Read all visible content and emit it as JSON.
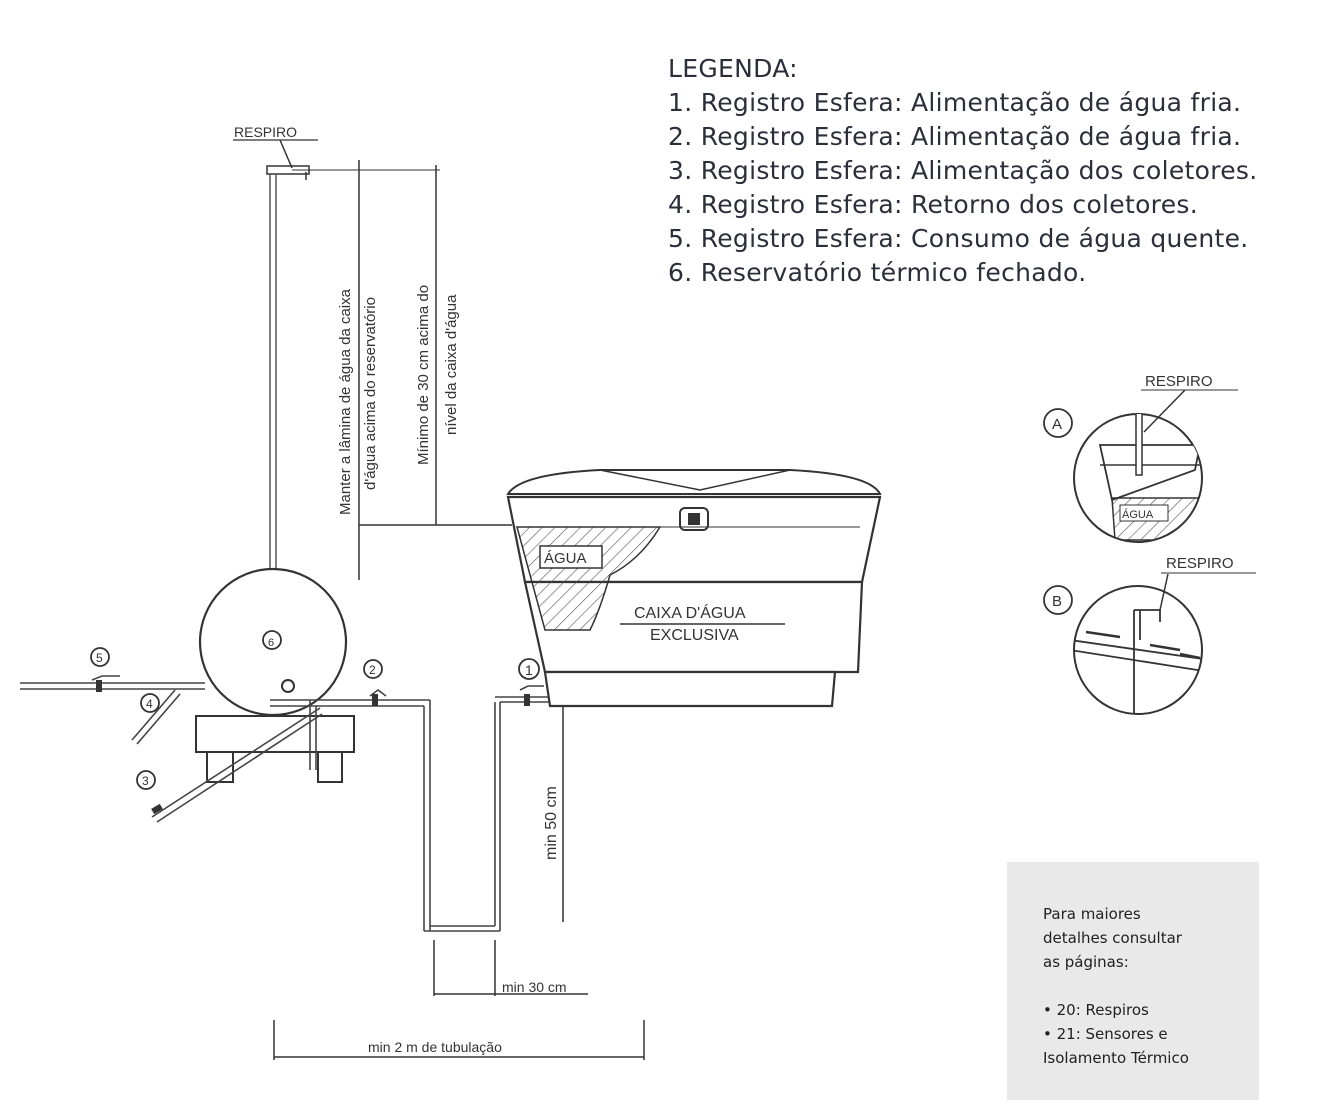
{
  "legend": {
    "title": "LEGENDA:",
    "items": [
      "1. Registro Esfera: Alimentação de água fria.",
      "2. Registro Esfera: Alimentação de água fria.",
      "3. Registro Esfera: Alimentação dos coletores.",
      "4. Registro Esfera: Retorno dos coletores.",
      "5. Registro Esfera: Consumo de água quente.",
      "6. Reservatório térmico fechado."
    ]
  },
  "diagram": {
    "respiro_top": "RESPIRO",
    "dim_lamina": [
      "Manter a lâmina de água da caixa",
      "d'água acima do reservatório"
    ],
    "dim_30cm": [
      "Mínimo de 30 cm acima do",
      "nível da caixa d'água"
    ],
    "agua": "ÁGUA",
    "caixa": [
      "CAIXA D'ÁGUA",
      "EXCLUSIVA"
    ],
    "min50": "min 50 cm",
    "min30": "min 30 cm",
    "min2m": "min 2 m de tubulação",
    "markers": [
      "1",
      "2",
      "3",
      "4",
      "5",
      "6"
    ]
  },
  "details": {
    "a_label": "A",
    "b_label": "B",
    "respiro_a": "RESPIRO",
    "respiro_b": "RESPIRO",
    "agua_a": "ÁGUA"
  },
  "note": {
    "lines": [
      "Para maiores",
      "detalhes consultar",
      "as páginas:",
      "",
      "• 20: Respiros",
      "• 21: Sensores e",
      "Isolamento Térmico"
    ]
  }
}
